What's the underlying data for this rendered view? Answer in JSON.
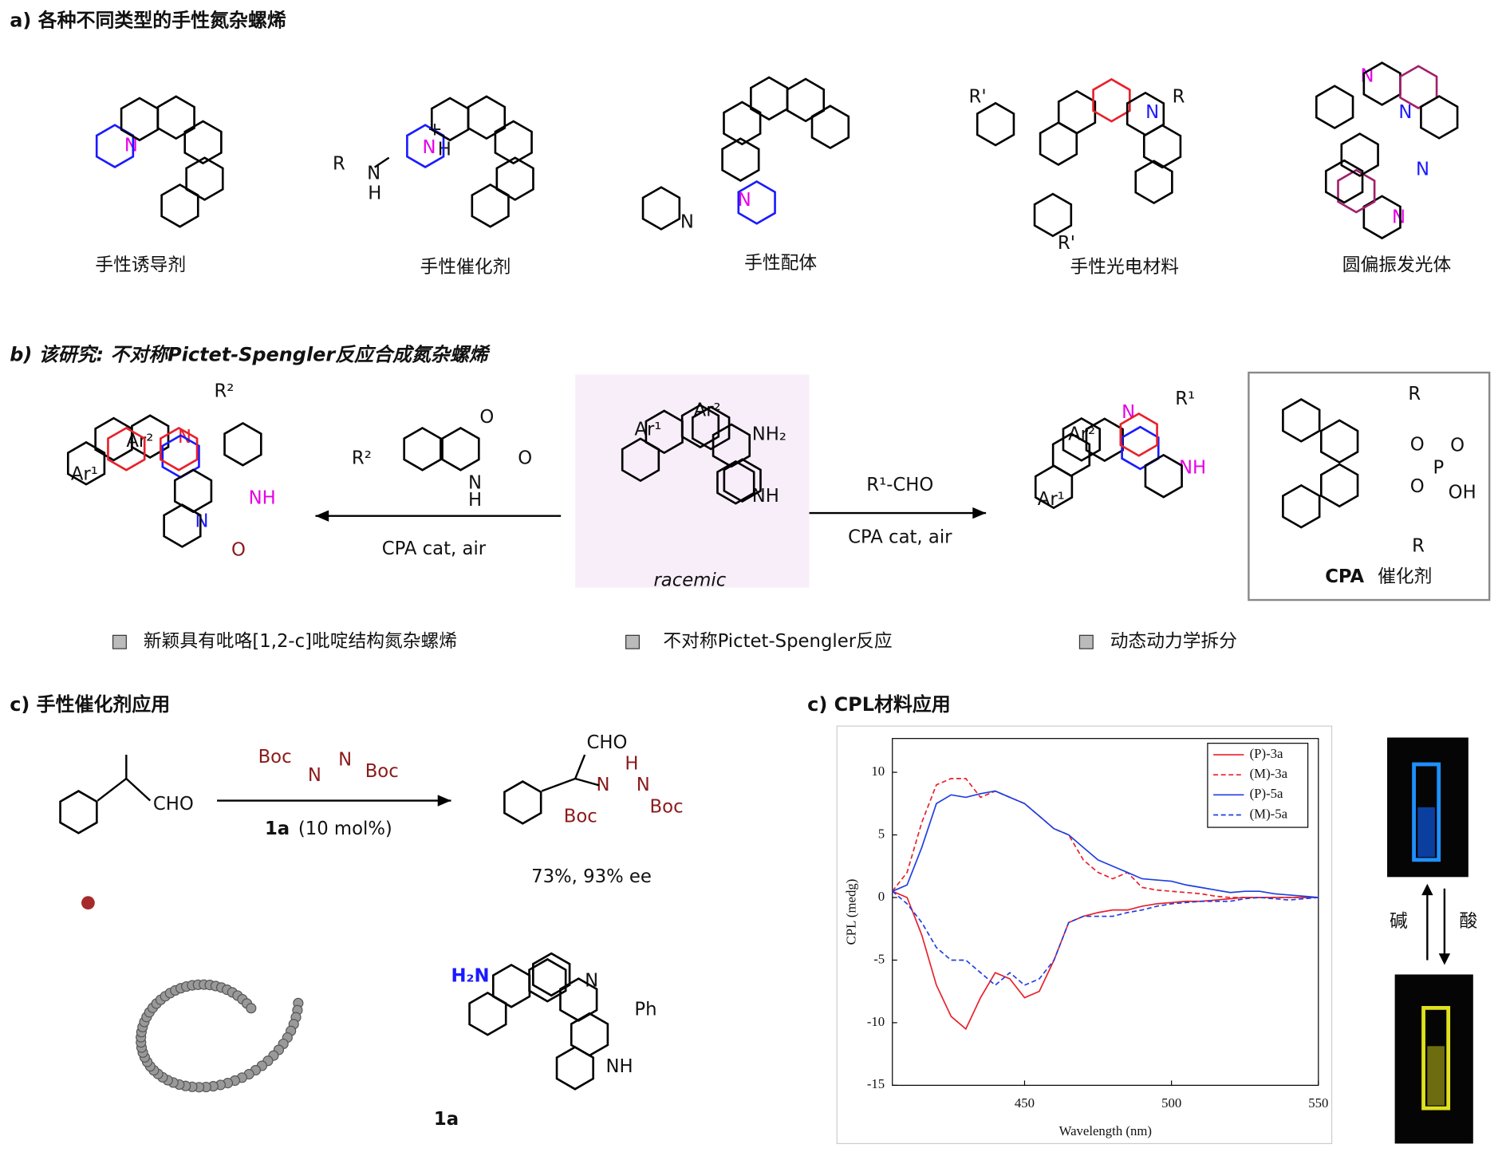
{
  "figure": {
    "a": {
      "title": "a) 各种不同类型的手性氮杂螺烯",
      "molecules": [
        {
          "caption": "手性诱导剂",
          "labels": [
            "N"
          ]
        },
        {
          "caption": "手性催化剂",
          "labels": [
            "R",
            "N",
            "H",
            "N",
            "+",
            "H"
          ]
        },
        {
          "caption": "手性配体",
          "labels": [
            "N",
            "N"
          ]
        },
        {
          "caption": "手性光电材料",
          "labels": [
            "R'",
            "N",
            "R",
            "R'"
          ]
        },
        {
          "caption": "圆偏振发光体",
          "labels": [
            "N",
            "N",
            "N",
            "N"
          ]
        }
      ]
    },
    "b": {
      "title": "b) 该研究: 不对称Pictet-Spengler反应合成氮杂螺烯",
      "left_product": [
        "Ar²",
        "N",
        "Ar¹",
        "R²",
        "NH",
        "N",
        "O"
      ],
      "isatin": [
        "O",
        "O",
        "R²",
        "N",
        "H"
      ],
      "left_condition": "CPA cat, air",
      "substrate": [
        "Ar²",
        "NH₂",
        "Ar¹",
        "NH"
      ],
      "substrate_note": "racemic",
      "right_reagent": "R¹-CHO",
      "right_condition": "CPA cat, air",
      "right_product": [
        "N",
        "R¹",
        "Ar²",
        "NH",
        "Ar¹"
      ],
      "catalyst": [
        "R",
        "O",
        "O",
        "P",
        "O",
        "OH",
        "R"
      ],
      "catalyst_caption_bold": "CPA",
      "catalyst_caption": "催化剂",
      "highlights": [
        "新颖具有吡咯[1,2-c]吡啶结构氮杂螺烯",
        "不对称Pictet-Spengler反应",
        "动态动力学拆分"
      ]
    },
    "c1": {
      "title": "c) 手性催化剂应用",
      "substrate": [
        "CHO"
      ],
      "reagent": [
        "Boc",
        "N",
        "N",
        "Boc"
      ],
      "condition_bold": "1a",
      "condition": "(10 mol%)",
      "product": [
        "CHO",
        "H",
        "N",
        "N",
        "Boc",
        "Boc"
      ],
      "result": "73%, 93% ee",
      "catalyst": [
        "H₂N",
        "N",
        "Ph",
        "NH"
      ],
      "catalyst_name": "1a"
    },
    "c2": {
      "title": "c) CPL材料应用",
      "base": "碱",
      "acid": "酸"
    }
  },
  "chart_data": {
    "type": "line",
    "xlabel": "Wavelength (nm)",
    "ylabel": "CPL (medg)",
    "x": [
      405,
      410,
      415,
      420,
      425,
      430,
      435,
      440,
      445,
      450,
      455,
      460,
      465,
      470,
      475,
      480,
      485,
      490,
      495,
      500,
      505,
      510,
      515,
      520,
      525,
      530,
      535,
      540,
      545,
      550
    ],
    "xlim": [
      405,
      550
    ],
    "xticks": [
      450,
      500,
      550
    ],
    "ylim": [
      -15,
      12.7
    ],
    "yticks": [
      -15,
      -10,
      -5,
      0,
      5,
      10
    ],
    "legend": "upper right",
    "series": [
      {
        "name": "(P)-3a",
        "color": "#e8202a",
        "linestyle": "solid",
        "values": [
          0.5,
          0,
          -3,
          -7,
          -9.5,
          -10.5,
          -8,
          -6,
          -6.5,
          -8,
          -7.5,
          -5,
          -2,
          -1.5,
          -1.2,
          -1,
          -1,
          -0.7,
          -0.5,
          -0.4,
          -0.3,
          -0.3,
          -0.2,
          -0.1,
          0,
          0,
          0,
          0,
          0,
          0
        ]
      },
      {
        "name": "(M)-3a",
        "color": "#e8202a",
        "linestyle": "dashed",
        "values": [
          0.5,
          2,
          6,
          9,
          9.5,
          9.5,
          8,
          8.5,
          8,
          7.5,
          6.5,
          5.5,
          5,
          3,
          2,
          1.5,
          2,
          0.8,
          0.6,
          0.5,
          0.4,
          0.3,
          0.1,
          0,
          0,
          0,
          0,
          0,
          0,
          0
        ]
      },
      {
        "name": "(P)-5a",
        "color": "#1f3fe0",
        "linestyle": "solid",
        "values": [
          0.5,
          1,
          4,
          7.5,
          8.2,
          8,
          8.3,
          8.5,
          8,
          7.5,
          6.5,
          5.5,
          5,
          4,
          3,
          2.5,
          2,
          1.5,
          1.4,
          1.3,
          1,
          0.8,
          0.6,
          0.4,
          0.5,
          0.5,
          0.3,
          0.2,
          0.1,
          0
        ]
      },
      {
        "name": "(M)-5a",
        "color": "#1f3fe0",
        "linestyle": "dashed",
        "values": [
          0.5,
          -0.5,
          -2,
          -4,
          -5,
          -5,
          -6,
          -7,
          -6,
          -7,
          -6.5,
          -5,
          -2,
          -1.5,
          -1.5,
          -1.5,
          -1.2,
          -1,
          -0.7,
          -0.5,
          -0.4,
          -0.3,
          -0.3,
          -0.3,
          -0.1,
          0,
          -0.1,
          -0.2,
          -0.1,
          0
        ]
      }
    ]
  }
}
